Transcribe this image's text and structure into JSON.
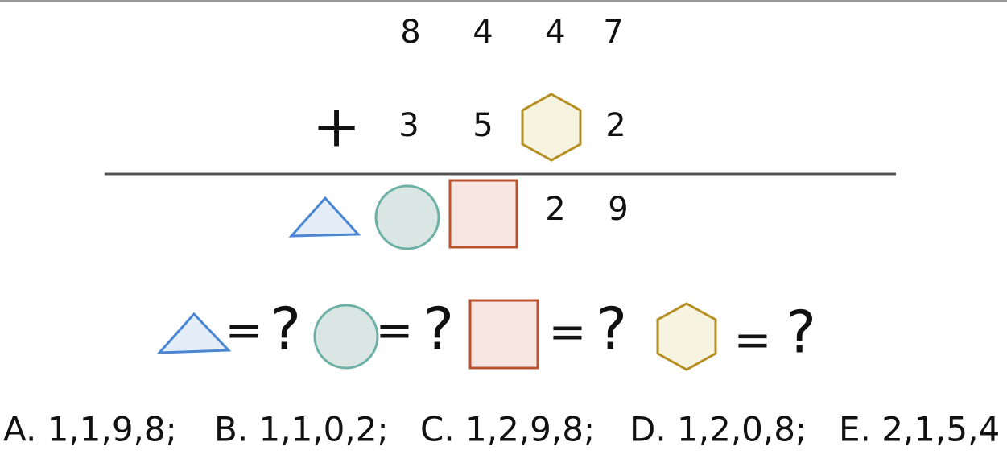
{
  "addend1": {
    "digits": [
      "8",
      "4",
      "4",
      "7"
    ]
  },
  "addend2": {
    "operator": "+",
    "digits": [
      "3",
      "5",
      "2"
    ]
  },
  "sum": {
    "digits": [
      "2",
      "9"
    ]
  },
  "question": {
    "items": [
      {
        "eq": "=",
        "q": "?"
      },
      {
        "eq": "=",
        "q": "?"
      },
      {
        "eq": "=",
        "q": "?"
      },
      {
        "eq": "=",
        "q": "?"
      }
    ]
  },
  "options": [
    "A. 1,1,9,8;",
    "B. 1,1,0,2;",
    "C. 1,2,9,8;",
    "D. 1,2,0,8;",
    "E. 2,1,5,4"
  ]
}
